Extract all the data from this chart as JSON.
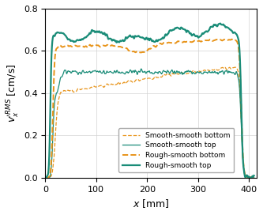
{
  "xlabel": "$x$ [mm]",
  "ylabel": "$v_x^{\\prime RMS}$ [cm/s]",
  "xlim": [
    0,
    415
  ],
  "ylim": [
    0,
    0.8
  ],
  "xticks": [
    0,
    100,
    200,
    300,
    400
  ],
  "yticks": [
    0,
    0.2,
    0.4,
    0.6,
    0.8
  ],
  "color_orange": "#E8941A",
  "color_teal": "#1A8C78",
  "legend_labels": [
    "Smooth-smooth bottom",
    "Smooth-smooth top",
    "Rough-smooth bottom",
    "Rough-smooth top"
  ]
}
